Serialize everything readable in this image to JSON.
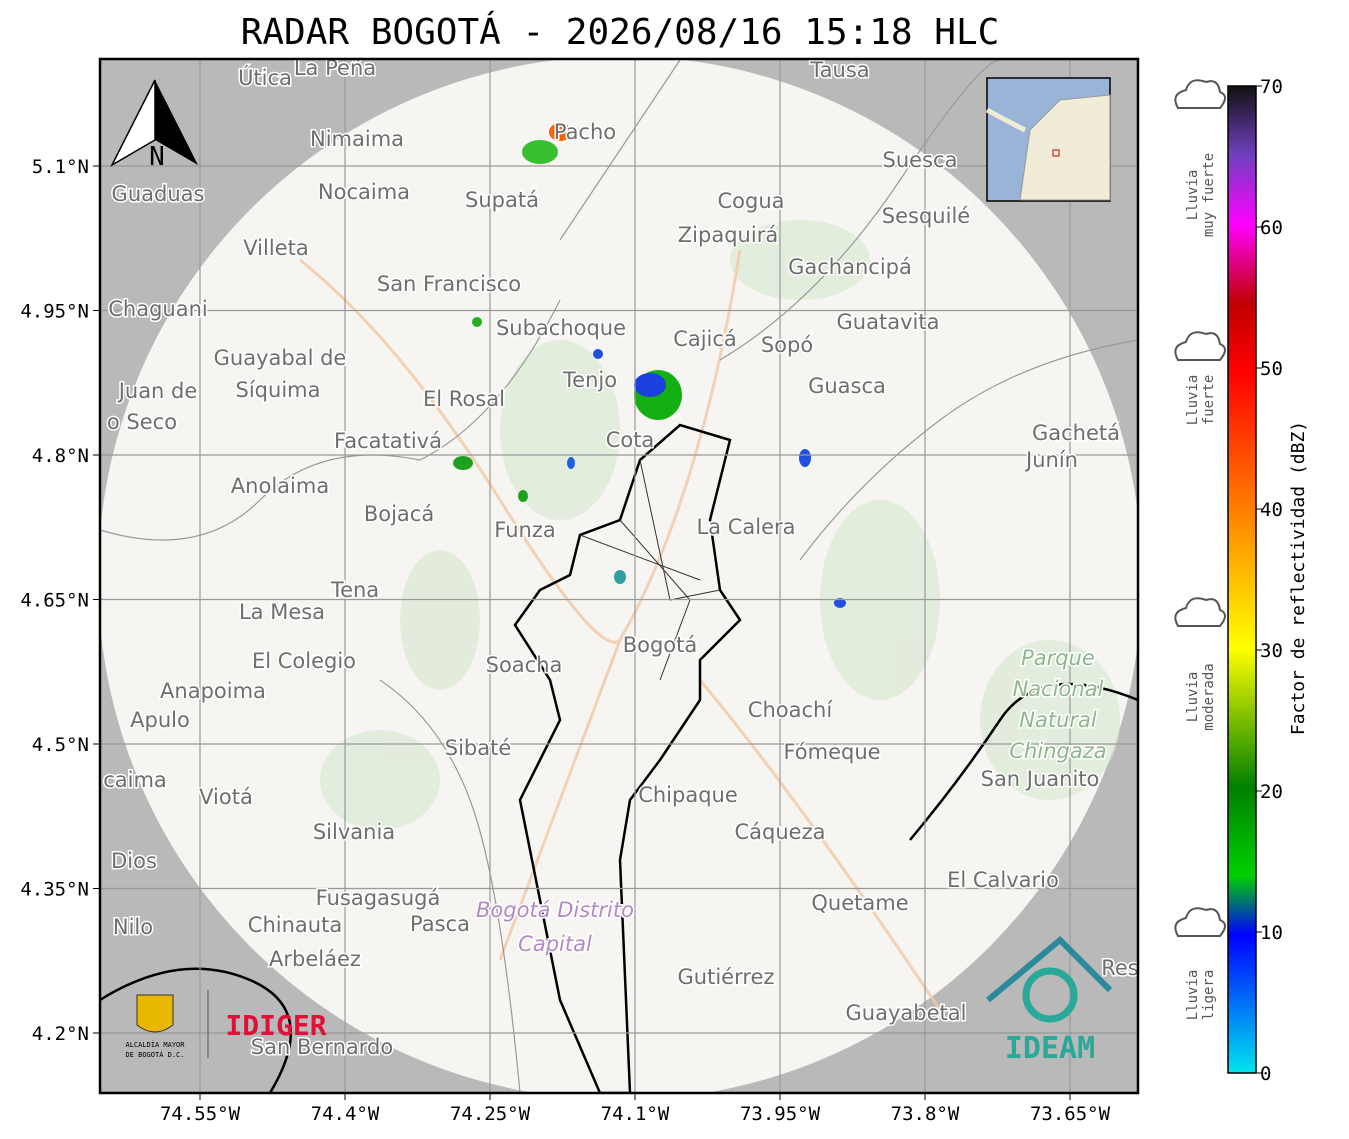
{
  "title": "RADAR BOGOTÁ - 2026/08/16 15:18 HLC",
  "lon_ticks": [
    "74.55°W",
    "74.4°W",
    "74.25°W",
    "74.1°W",
    "73.95°W",
    "73.8°W",
    "73.65°W"
  ],
  "lat_ticks": [
    "5.1°N",
    "4.95°N",
    "4.8°N",
    "4.65°N",
    "4.5°N",
    "4.35°N",
    "4.2°N"
  ],
  "north_label": "N",
  "colorbar": {
    "label": "Factor de reflectividad (dBZ)",
    "ticks": [
      0,
      10,
      20,
      30,
      40,
      50,
      60,
      70
    ]
  },
  "rain_levels": [
    [
      "Lluvia",
      "muy fuerte"
    ],
    [
      "Lluvia",
      "fuerte"
    ],
    [
      "Lluvia",
      "moderada"
    ],
    [
      "Lluvia",
      "ligera"
    ]
  ],
  "logos": {
    "alcaldia": [
      "ALCALDÍA MAYOR",
      "DE BOGOTÁ D.C."
    ],
    "idiger": "IDIGER",
    "ideam": "IDEAM"
  },
  "places": [
    "Útica",
    "La Peña",
    "Tausa",
    "Nimaima",
    "Pacho",
    "Guaduas",
    "Nocaima",
    "Supatá",
    "Cogua",
    "Suesca",
    "Sesquilé",
    "Villeta",
    "Zipaquirá",
    "Gachancipá",
    "San Francisco",
    "Chaguani",
    "Subachoque",
    "Guatavita",
    "Cajicá",
    "Sopó",
    "Guayabal de",
    "Síquima",
    "Juan de",
    "Tenjo",
    "El Rosal",
    "Guasca",
    "o Seco",
    "Facatativá",
    "Cota",
    "Gachetá",
    "Junín",
    "Anolaima",
    "Bojacá",
    "Funza",
    "La Calera",
    "Tena",
    "La Mesa",
    "El Colegio",
    "Soacha",
    "Bogotá",
    "Anapoima",
    "Apulo",
    "Choachí",
    "Sibaté",
    "Fómeque",
    "San Juanito",
    "caima",
    "Viotá",
    "Chipaque",
    "Cáqueza",
    "Silvania",
    "Dios",
    "El Calvario",
    "Fusagasugá",
    "Quetame",
    "Nilo",
    "Chinauta",
    "Pasca",
    "Arbeláez",
    "Gutiérrez",
    "Guayabetal",
    "San Bernardo",
    "Res"
  ],
  "park": [
    "Parque",
    "Nacional",
    "Natural",
    "Chingaza"
  ],
  "capital_district": [
    "Bogotá Distrito",
    "Capital"
  ]
}
